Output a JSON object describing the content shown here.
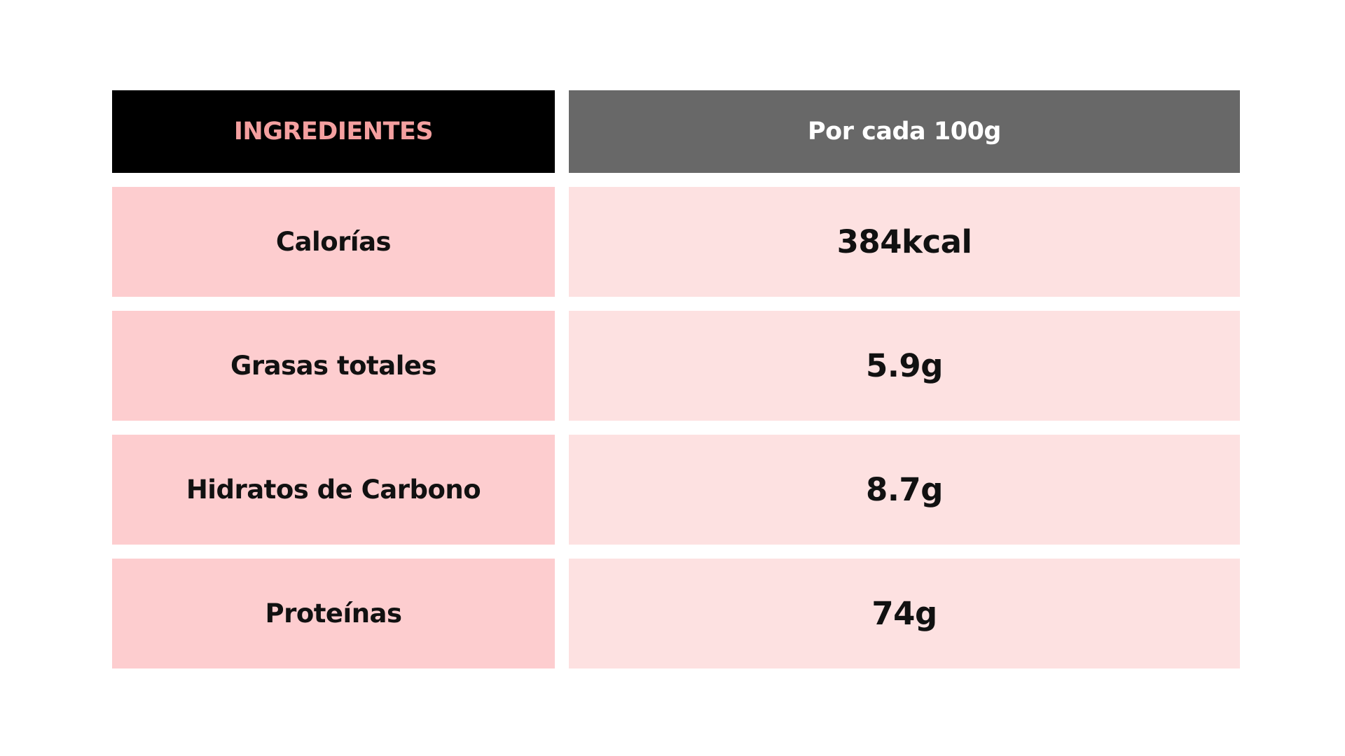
{
  "colors": {
    "header_left_bg": "#000000",
    "header_left_text": "#f4a0a0",
    "header_right_bg": "#686868",
    "header_right_text": "#ffffff",
    "label_bg": "#fdcdcf",
    "value_bg": "#fde1e1",
    "body_text": "#111111"
  },
  "header": {
    "left": "INGREDIENTES",
    "right": "Por cada 100g"
  },
  "rows": [
    {
      "label": "Calorías",
      "value": "384kcal"
    },
    {
      "label": "Grasas totales",
      "value": "5.9g"
    },
    {
      "label": "Hidratos de Carbono",
      "value": "8.7g"
    },
    {
      "label": "Proteínas",
      "value": "74g"
    }
  ]
}
